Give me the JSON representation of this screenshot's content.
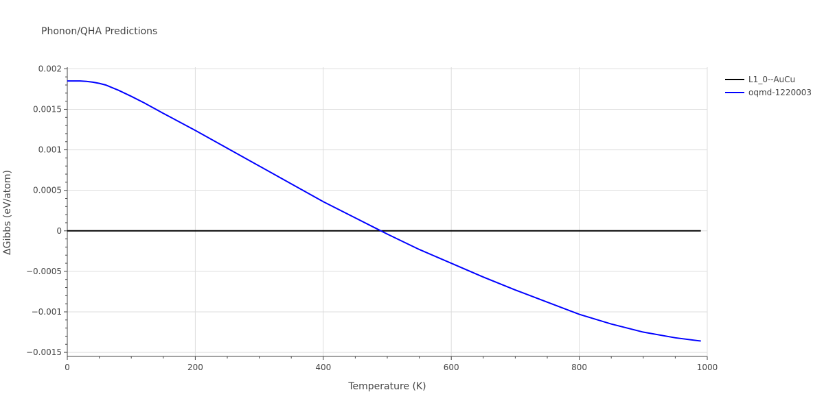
{
  "chart_data": {
    "type": "line",
    "title": "Phonon/QHA Predictions",
    "xlabel": "Temperature (K)",
    "ylabel": "ΔGibbs (eV/atom)",
    "xlim": [
      0,
      1000
    ],
    "ylim": [
      -0.00155,
      0.00202
    ],
    "x_ticks": [
      0,
      200,
      400,
      600,
      800,
      1000
    ],
    "x_tick_labels": [
      "0",
      "200",
      "400",
      "600",
      "800",
      "1000"
    ],
    "y_ticks": [
      -0.0015,
      -0.001,
      -0.0005,
      0,
      0.0005,
      0.001,
      0.0015,
      0.002
    ],
    "y_tick_labels": [
      "−0.0015",
      "−0.001",
      "−0.0005",
      "0",
      "0.0005",
      "0.001",
      "0.0015",
      "0.002"
    ],
    "grid": true,
    "legend_position": "right",
    "series": [
      {
        "name": "L1_0--AuCu",
        "color": "#000000",
        "x": [
          0,
          990
        ],
        "y": [
          0,
          0
        ]
      },
      {
        "name": "oqmd-1220003",
        "color": "#0000ff",
        "x": [
          0,
          10,
          20,
          30,
          40,
          50,
          60,
          80,
          100,
          120,
          150,
          200,
          250,
          300,
          350,
          400,
          450,
          480,
          500,
          550,
          600,
          650,
          700,
          750,
          800,
          850,
          900,
          950,
          990
        ],
        "y": [
          0.00185,
          0.00185,
          0.00185,
          0.001845,
          0.001835,
          0.00182,
          0.0018,
          0.001735,
          0.00166,
          0.00158,
          0.00145,
          0.00124,
          0.00102,
          0.0008,
          0.00058,
          0.00036,
          0.00016,
          4e-05,
          -4e-05,
          -0.00023,
          -0.0004,
          -0.00057,
          -0.00073,
          -0.00088,
          -0.00103,
          -0.00115,
          -0.00125,
          -0.00132,
          -0.00136
        ]
      }
    ]
  }
}
